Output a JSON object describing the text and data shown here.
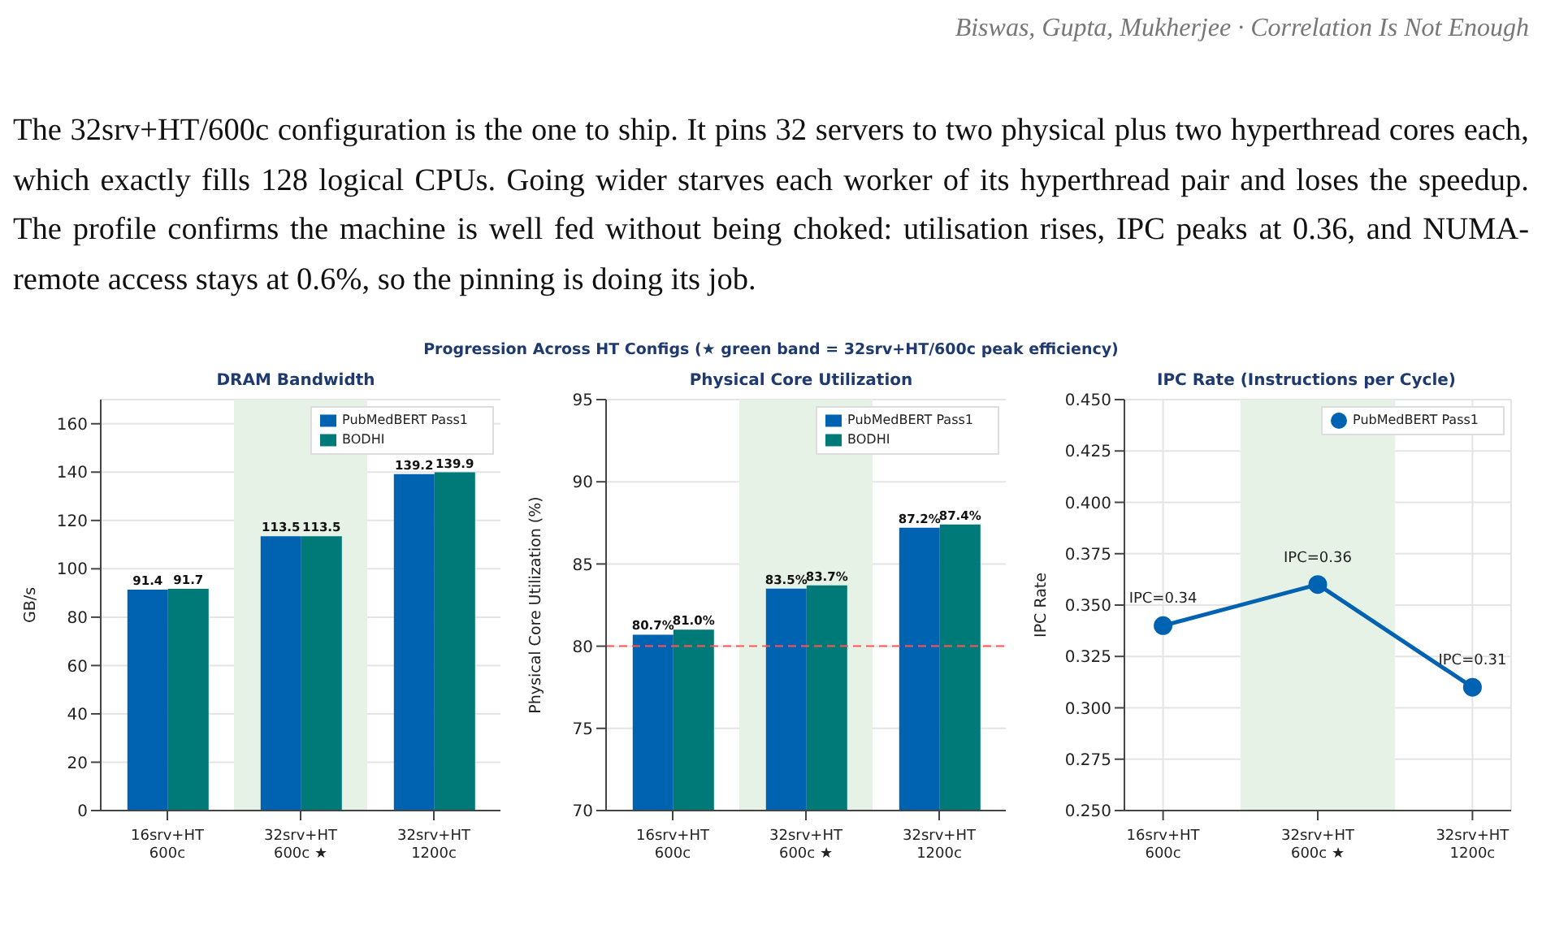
{
  "chart_data": [
    {
      "type": "bar",
      "title": "DRAM Bandwidth",
      "ylabel": "GB/s",
      "annotations": [
        "Biswas, Gupta, Mukherjee  ·  Correlation Is Not Enough",
        "The 32srv+HT/600c configuration is the one to ship. It pins 32 servers to two physical plus two hyperthread cores each, which exactly fills 128 logical CPUs. Going wider starves each worker of its hyperthread pair and loses the speedup. The profile confirms the machine is well fed without being choked: utilisation rises, IPC peaks at 0.36, and NUMA-remote access stays at 0.6%, so the pinning is doing its job.",
        "Progression Across HT Configs  (★ green band = 32srv+HT/600c peak efficiency)"
      ],
      "categories": [
        "16srv+HT\n600c",
        "32srv+HT\n600c ★",
        "32srv+HT\n1200c"
      ],
      "series": [
        {
          "name": "PubMedBERT Pass1",
          "color": "#0063b1",
          "values": [
            91.4,
            113.5,
            139.2
          ]
        },
        {
          "name": "BODHI",
          "color": "#007a78",
          "values": [
            91.7,
            113.5,
            139.9
          ]
        }
      ],
      "ylim": [
        0,
        170
      ],
      "yticks": [
        0,
        20,
        40,
        60,
        80,
        100,
        120,
        140,
        160
      ],
      "bands": [
        {
          "axis": "x",
          "from": "32srv+HT\n600c ★",
          "to": "32srv+HT\n600c ★",
          "color": "#e7f2e6"
        }
      ],
      "data_labels": true,
      "grid": "y",
      "legend": "top right"
    },
    {
      "type": "bar",
      "title": "Physical Core Utilization",
      "ylabel": "Physical Core Utilization (%)",
      "categories": [
        "16srv+HT\n600c",
        "32srv+HT\n600c ★",
        "32srv+HT\n1200c"
      ],
      "series": [
        {
          "name": "PubMedBERT Pass1",
          "color": "#0063b1",
          "values": [
            80.7,
            83.5,
            87.2
          ],
          "value_labels": [
            "80.7%",
            "83.5%",
            "87.2%"
          ]
        },
        {
          "name": "BODHI",
          "color": "#007a78",
          "values": [
            81.0,
            83.7,
            87.4
          ],
          "value_labels": [
            "81.0%",
            "83.7%",
            "87.4%"
          ]
        }
      ],
      "ylim": [
        70,
        95
      ],
      "yticks": [
        70,
        75,
        80,
        85,
        90,
        95
      ],
      "bands": [
        {
          "axis": "x",
          "from": "32srv+HT\n600c ★",
          "to": "32srv+HT\n600c ★",
          "color": "#e7f2e6"
        }
      ],
      "ref_lines": [
        {
          "axis": "y",
          "value": 80,
          "color": "#ff5555",
          "line_style": "dashed"
        }
      ],
      "grid": "y",
      "legend": "top right"
    },
    {
      "type": "line",
      "title": "IPC Rate (Instructions per Cycle)",
      "ylabel": "IPC Rate",
      "categories": [
        "16srv+HT\n600c",
        "32srv+HT\n600c ★",
        "32srv+HT\n1200c"
      ],
      "series": [
        {
          "name": "PubMedBERT Pass1",
          "color": "#0063b1",
          "values": [
            0.34,
            0.36,
            0.31
          ],
          "value_labels": [
            "IPC=0.34",
            "IPC=0.36",
            "IPC=0.31"
          ]
        }
      ],
      "ylim": [
        0.25,
        0.45
      ],
      "yticks": [
        {
          "value": 0.25,
          "label": "0.250"
        },
        {
          "value": 0.275,
          "label": "0.275"
        },
        {
          "value": 0.3,
          "label": "0.300"
        },
        {
          "value": 0.325,
          "label": "0.325"
        },
        {
          "value": 0.35,
          "label": "0.350"
        },
        {
          "value": 0.375,
          "label": "0.375"
        },
        {
          "value": 0.4,
          "label": "0.400"
        },
        {
          "value": 0.425,
          "label": "0.425"
        },
        {
          "value": 0.45,
          "label": "0.450"
        }
      ],
      "bands": [
        {
          "axis": "x",
          "from": "32srv+HT\n600c ★",
          "to": "32srv+HT\n600c ★",
          "color": "#e7f2e6"
        }
      ],
      "marker": "circle",
      "line_style": "solid",
      "grid": true,
      "legend": "top right"
    }
  ]
}
